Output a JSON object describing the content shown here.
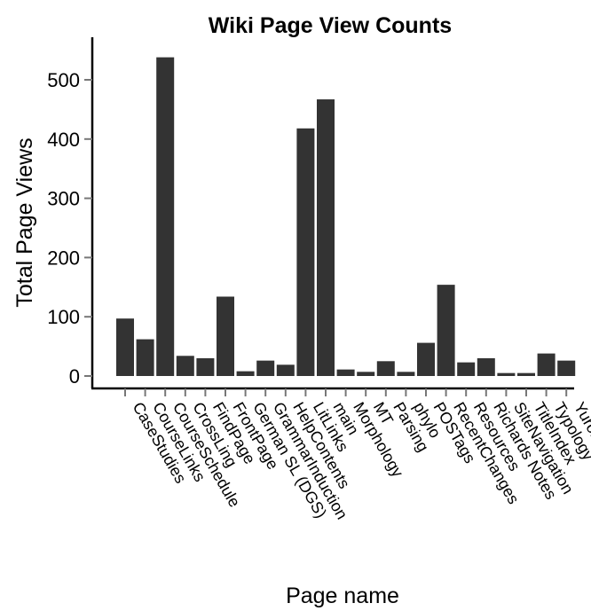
{
  "chart_data": {
    "type": "bar",
    "title": "Wiki Page View Counts",
    "xlabel": "Page name",
    "ylabel": "Total Page Views",
    "ylim": [
      0,
      560
    ],
    "yticks": [
      0,
      100,
      200,
      300,
      400,
      500
    ],
    "categories": [
      "CaseStudies",
      "CourseLinks",
      "CourseSchedule",
      "CrossLing",
      "FindPage",
      "FrontPage",
      "German SL (DGS)",
      "GrammarInduction",
      "HelpContents",
      "LitLinks",
      "main",
      "Morphology",
      "MT",
      "Parsing",
      "phylo",
      "POSTags",
      "RecentChanges",
      "Resources",
      "Richards Notes",
      "SiteNavigation",
      "TitleIndex",
      "Typology",
      "Yurok"
    ],
    "values": [
      97,
      62,
      538,
      34,
      30,
      134,
      8,
      26,
      19,
      418,
      467,
      11,
      7,
      25,
      7,
      56,
      154,
      23,
      30,
      5,
      5,
      38,
      26
    ],
    "bar_color": "#333333",
    "grid": false,
    "legend": "none"
  }
}
